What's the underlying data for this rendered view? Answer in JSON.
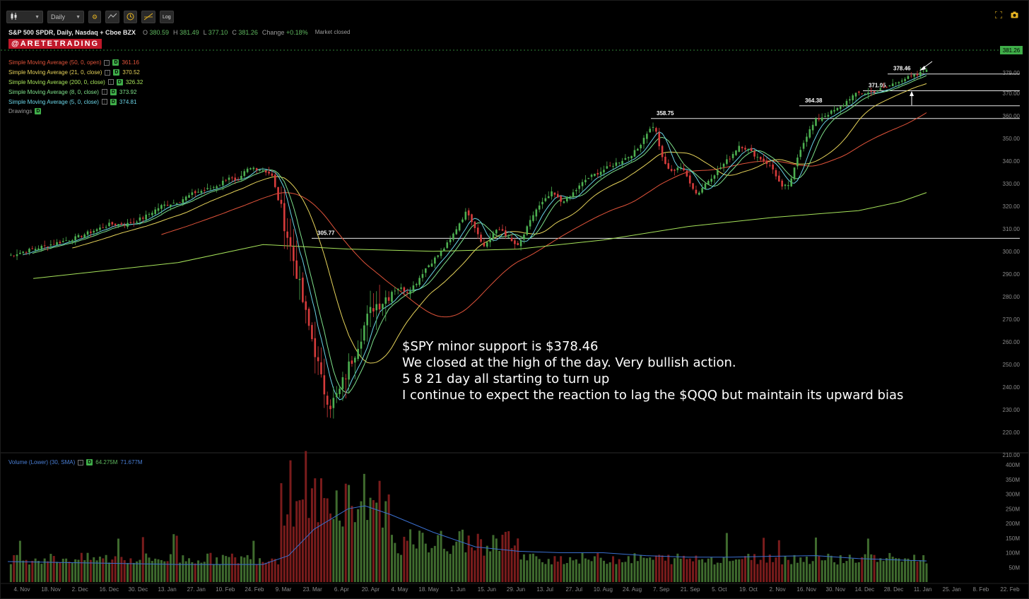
{
  "toolbar": {
    "chart_type_icon": "candlestick-icon",
    "interval": "Daily",
    "settings_icon": "gear-icon",
    "indicator_icon": "indicator-icon",
    "clock_icon": "clock-icon",
    "drawing_icon": "drawing-tool-icon",
    "log_label": "Log",
    "fullscreen_icon": "fullscreen-icon",
    "snapshot_icon": "camera-icon"
  },
  "header": {
    "symbol_line": "S&P 500 SPDR, Daily, Nasdaq + Cboe BZX",
    "open_label": "O",
    "open": "380.59",
    "high_label": "H",
    "high": "381.49",
    "low_label": "L",
    "low": "377.10",
    "close_label": "C",
    "close": "381.26",
    "change_label": "Change",
    "change": "+0.18%",
    "status": "Market closed"
  },
  "watermark": "@ARETETRADING",
  "studies": [
    {
      "label": "Simple Moving Average (50, 0, open)",
      "value": "361.16",
      "color": "#e0533a"
    },
    {
      "label": "Simple Moving Average (21, 0, close)",
      "value": "370.52",
      "color": "#e6d35a"
    },
    {
      "label": "Simple Moving Average (200, 0, close)",
      "value": "326.32",
      "color": "#a6e35a"
    },
    {
      "label": "Simple Moving Average (8, 0, close)",
      "value": "373.92",
      "color": "#7ee08a"
    },
    {
      "label": "Simple Moving Average (5, 0, close)",
      "value": "374.81",
      "color": "#6ad4e6"
    }
  ],
  "drawings_label": "Drawings",
  "badge_letter": "D",
  "volume_legend": {
    "label": "Volume (Lower) (30, SMA)",
    "value1": "64.275M",
    "value2": "71.677M"
  },
  "last_price_tag": "381.26",
  "price_levels": [
    {
      "label": "378.46",
      "price": 378.46
    },
    {
      "label": "371.05",
      "price": 371.05
    },
    {
      "label": "364.38",
      "price": 364.38
    },
    {
      "label": "358.75",
      "price": 358.75
    },
    {
      "label": "305.77",
      "price": 305.77
    }
  ],
  "annotation": [
    "$SPY minor support is $378.46",
    "We closed at the high of the day. Very bullish action.",
    "5 8 21 day all starting to turn up",
    "I continue to expect the reaction to lag the $QQQ but maintain its upward bias"
  ],
  "chart_data": {
    "type": "candlestick",
    "title": "S&P 500 SPDR, Daily, Nasdaq + Cboe BZX",
    "price_axis_ticks": [
      "379.00",
      "370.00",
      "360.00",
      "350.00",
      "340.00",
      "330.00",
      "320.00",
      "310.00",
      "300.00",
      "290.00",
      "280.00",
      "270.00",
      "260.00",
      "250.00",
      "240.00",
      "230.00",
      "220.00",
      "210.00"
    ],
    "volume_axis_ticks": [
      "400M",
      "350M",
      "300M",
      "250M",
      "200M",
      "150M",
      "100M",
      "50M"
    ],
    "x_ticks": [
      "4. Nov",
      "18. Nov",
      "2. Dec",
      "16. Dec",
      "30. Dec",
      "13. Jan",
      "27. Jan",
      "10. Feb",
      "24. Feb",
      "9. Mar",
      "23. Mar",
      "6. Apr",
      "20. Apr",
      "4. May",
      "18. May",
      "1. Jun",
      "15. Jun",
      "29. Jun",
      "13. Jul",
      "27. Jul",
      "10. Aug",
      "24. Aug",
      "7. Sep",
      "21. Sep",
      "5. Oct",
      "19. Oct",
      "2. Nov",
      "16. Nov",
      "30. Nov",
      "14. Dec",
      "28. Dec",
      "11. Jan",
      "25. Jan",
      "8. Feb",
      "22. Feb"
    ],
    "close_path": [
      [
        0,
        298
      ],
      [
        4,
        302
      ],
      [
        8,
        306
      ],
      [
        12,
        312
      ],
      [
        14,
        312
      ],
      [
        16,
        315
      ],
      [
        18,
        320
      ],
      [
        20,
        322
      ],
      [
        22,
        326
      ],
      [
        24,
        328
      ],
      [
        25,
        330
      ],
      [
        26,
        333
      ],
      [
        27,
        330
      ],
      [
        28,
        336
      ],
      [
        29,
        337
      ],
      [
        30,
        336
      ],
      [
        31,
        334
      ],
      [
        32,
        320
      ],
      [
        33,
        305
      ],
      [
        34,
        290
      ],
      [
        35,
        272
      ],
      [
        36,
        258
      ],
      [
        37,
        240
      ],
      [
        38,
        232
      ],
      [
        39,
        238
      ],
      [
        40,
        248
      ],
      [
        41,
        258
      ],
      [
        42,
        268
      ],
      [
        43,
        276
      ],
      [
        44,
        278
      ],
      [
        45,
        282
      ],
      [
        46,
        284
      ],
      [
        47,
        282
      ],
      [
        48,
        286
      ],
      [
        49,
        292
      ],
      [
        50,
        296
      ],
      [
        51,
        300
      ],
      [
        52,
        305
      ],
      [
        53,
        312
      ],
      [
        54,
        318
      ],
      [
        55,
        310
      ],
      [
        56,
        302
      ],
      [
        57,
        308
      ],
      [
        58,
        310
      ],
      [
        59,
        305
      ],
      [
        60,
        302
      ],
      [
        61,
        310
      ],
      [
        62,
        318
      ],
      [
        63,
        322
      ],
      [
        64,
        326
      ],
      [
        65,
        322
      ],
      [
        66,
        324
      ],
      [
        67,
        328
      ],
      [
        68,
        332
      ],
      [
        69,
        334
      ],
      [
        70,
        336
      ],
      [
        71,
        338
      ],
      [
        72,
        340
      ],
      [
        73,
        342
      ],
      [
        74,
        345
      ],
      [
        75,
        352
      ],
      [
        76,
        356
      ],
      [
        77,
        340
      ],
      [
        78,
        335
      ],
      [
        79,
        338
      ],
      [
        80,
        332
      ],
      [
        81,
        325
      ],
      [
        82,
        330
      ],
      [
        83,
        334
      ],
      [
        84,
        338
      ],
      [
        85,
        342
      ],
      [
        86,
        347
      ],
      [
        87,
        345
      ],
      [
        88,
        342
      ],
      [
        89,
        340
      ],
      [
        90,
        336
      ],
      [
        91,
        328
      ],
      [
        92,
        330
      ],
      [
        93,
        344
      ],
      [
        94,
        352
      ],
      [
        95,
        358
      ],
      [
        96,
        360
      ],
      [
        97,
        362
      ],
      [
        98,
        364
      ],
      [
        99,
        368
      ],
      [
        100,
        370
      ],
      [
        101,
        370
      ],
      [
        102,
        371
      ],
      [
        103,
        372
      ],
      [
        104,
        374
      ],
      [
        105,
        376
      ],
      [
        106,
        377
      ],
      [
        107,
        378
      ],
      [
        108,
        381
      ]
    ],
    "sma200_path": [
      [
        3,
        288
      ],
      [
        20,
        295
      ],
      [
        30,
        303
      ],
      [
        40,
        301
      ],
      [
        50,
        300
      ],
      [
        60,
        301
      ],
      [
        70,
        305
      ],
      [
        80,
        311
      ],
      [
        90,
        315
      ],
      [
        100,
        318
      ],
      [
        105,
        322
      ],
      [
        108,
        326
      ]
    ],
    "volume_avg_path": [
      [
        0,
        70
      ],
      [
        10,
        65
      ],
      [
        20,
        60
      ],
      [
        30,
        60
      ],
      [
        33,
        90
      ],
      [
        36,
        180
      ],
      [
        40,
        250
      ],
      [
        42,
        260
      ],
      [
        45,
        230
      ],
      [
        50,
        170
      ],
      [
        55,
        120
      ],
      [
        60,
        105
      ],
      [
        65,
        100
      ],
      [
        70,
        100
      ],
      [
        75,
        90
      ],
      [
        80,
        85
      ],
      [
        85,
        85
      ],
      [
        90,
        88
      ],
      [
        95,
        90
      ],
      [
        100,
        80
      ],
      [
        105,
        75
      ],
      [
        108,
        72
      ]
    ]
  }
}
